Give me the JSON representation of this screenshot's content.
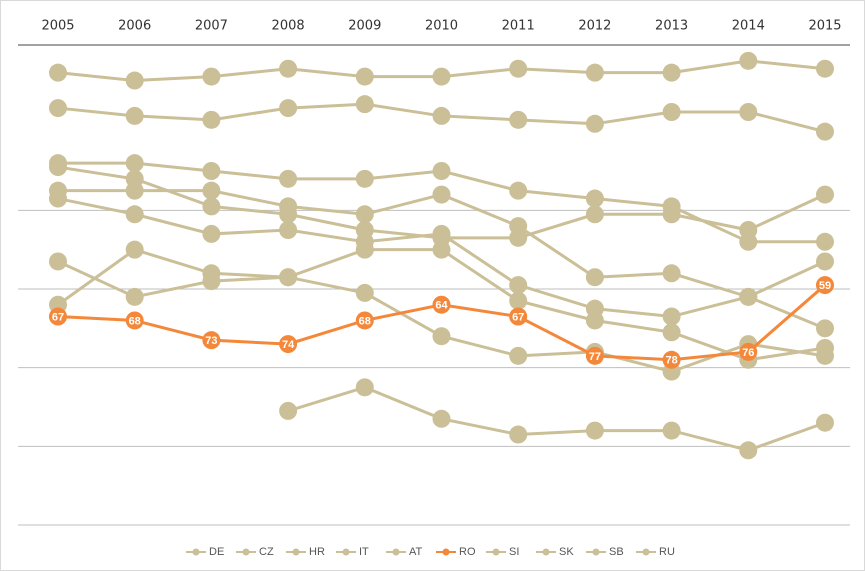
{
  "chart_data": {
    "type": "line",
    "x": [
      "2005",
      "2006",
      "2007",
      "2008",
      "2009",
      "2010",
      "2011",
      "2012",
      "2013",
      "2014",
      "2015"
    ],
    "ylim": [
      0,
      120
    ],
    "y_inverted": true,
    "yticks": [
      40,
      60,
      80,
      100,
      120
    ],
    "grid": true,
    "legend": "bottom",
    "series": [
      {
        "name": "DE",
        "color": "#cbbf98",
        "values": [
          5,
          7,
          6,
          4,
          6,
          6,
          4,
          5,
          5,
          2,
          4
        ]
      },
      {
        "name": "CZ",
        "color": "#cbbf98",
        "values": [
          14,
          16,
          17,
          14,
          13,
          16,
          17,
          18,
          15,
          15,
          20
        ]
      },
      {
        "name": "HR",
        "color": "#cbbf98",
        "values": [
          28,
          28,
          30,
          32,
          32,
          30,
          35,
          37,
          39,
          48,
          48
        ]
      },
      {
        "name": "IT",
        "color": "#cbbf98",
        "values": [
          29,
          32,
          39,
          41,
          45,
          47,
          47,
          41,
          41,
          45,
          36
        ]
      },
      {
        "name": "AT",
        "color": "#cbbf98",
        "values": [
          35,
          35,
          35,
          39,
          41,
          36,
          44,
          57,
          56,
          62,
          70
        ]
      },
      {
        "name": "RO",
        "color": "#f4883a",
        "values": [
          67,
          68,
          73,
          74,
          68,
          64,
          67,
          77,
          78,
          76,
          59
        ],
        "data_labels": true
      },
      {
        "name": "SI",
        "color": "#cbbf98",
        "values": [
          37,
          41,
          46,
          45,
          48,
          46,
          59,
          65,
          67,
          62,
          53
        ]
      },
      {
        "name": "SK",
        "color": "#cbbf98",
        "values": [
          53,
          62,
          58,
          57,
          50,
          50,
          63,
          68,
          71,
          78,
          75
        ]
      },
      {
        "name": "SB",
        "color": "#cbbf98",
        "values": [
          64,
          50,
          56,
          57,
          61,
          72,
          77,
          76,
          81,
          74,
          77
        ]
      },
      {
        "name": "RU",
        "color": "#cbbf98",
        "values": [
          null,
          null,
          null,
          91,
          85,
          93,
          97,
          96,
          96,
          101,
          94
        ]
      }
    ]
  }
}
